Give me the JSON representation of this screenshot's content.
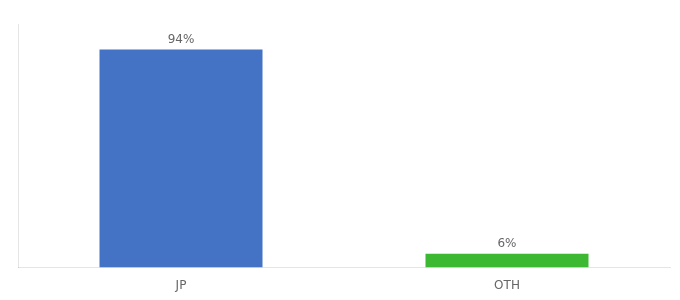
{
  "chart_data": {
    "type": "bar",
    "categories": [
      "JP",
      "OTH"
    ],
    "values": [
      94,
      6
    ],
    "value_labels": [
      "94%",
      "6%"
    ],
    "data_labels": true,
    "colors": [
      "#4472c4",
      "#3cb832"
    ],
    "ylim": [
      0,
      105
    ],
    "grid": false,
    "tick_labels": "x"
  }
}
